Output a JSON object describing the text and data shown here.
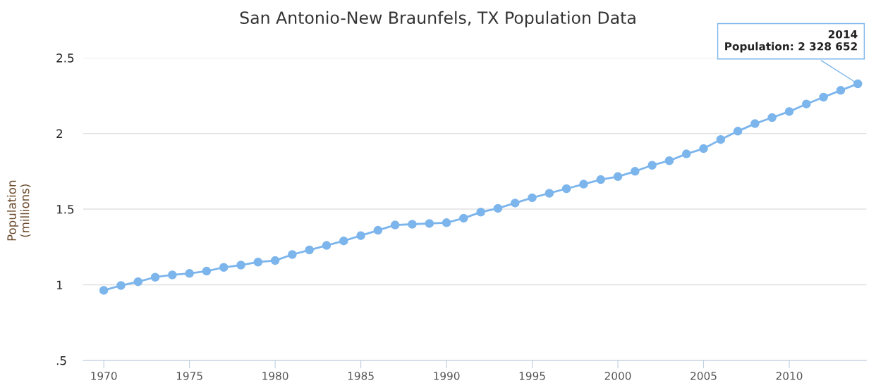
{
  "chart_data": {
    "type": "line",
    "title": "San Antonio-New Braunfels, TX Population Data",
    "ylabel": "Population\n(millions)",
    "x": [
      1970,
      1971,
      1972,
      1973,
      1974,
      1975,
      1976,
      1977,
      1978,
      1979,
      1980,
      1981,
      1982,
      1983,
      1984,
      1985,
      1986,
      1987,
      1988,
      1989,
      1990,
      1991,
      1992,
      1993,
      1994,
      1995,
      1996,
      1997,
      1998,
      1999,
      2000,
      2001,
      2002,
      2003,
      2004,
      2005,
      2006,
      2007,
      2008,
      2009,
      2010,
      2011,
      2012,
      2013,
      2014
    ],
    "series": [
      {
        "color": "#7cb5ec",
        "values": [
          0.963,
          0.995,
          1.02,
          1.05,
          1.065,
          1.075,
          1.09,
          1.115,
          1.13,
          1.15,
          1.16,
          1.2,
          1.23,
          1.26,
          1.29,
          1.325,
          1.36,
          1.395,
          1.4,
          1.405,
          1.41,
          1.44,
          1.48,
          1.505,
          1.54,
          1.575,
          1.605,
          1.635,
          1.665,
          1.695,
          1.715,
          1.75,
          1.79,
          1.82,
          1.865,
          1.9,
          1.96,
          2.015,
          2.065,
          2.105,
          2.145,
          2.195,
          2.24,
          2.285,
          2.328652
        ]
      }
    ],
    "xlim": [
      1968.8,
      2014.5
    ],
    "xticks": [
      1970,
      1975,
      1980,
      1985,
      1990,
      1995,
      2000,
      2005,
      2010
    ],
    "ylim": [
      0.5,
      2.5
    ],
    "yticks": [
      {
        "value": 0.5,
        "label": ".5"
      },
      1,
      1.5,
      2,
      2.5
    ],
    "grid": "y",
    "marker": "circle",
    "line_style": "solid",
    "annotations": [
      {
        "text": "2014\nPopulation: 2 328 652",
        "x": 2014,
        "y": 2.328652
      }
    ]
  }
}
